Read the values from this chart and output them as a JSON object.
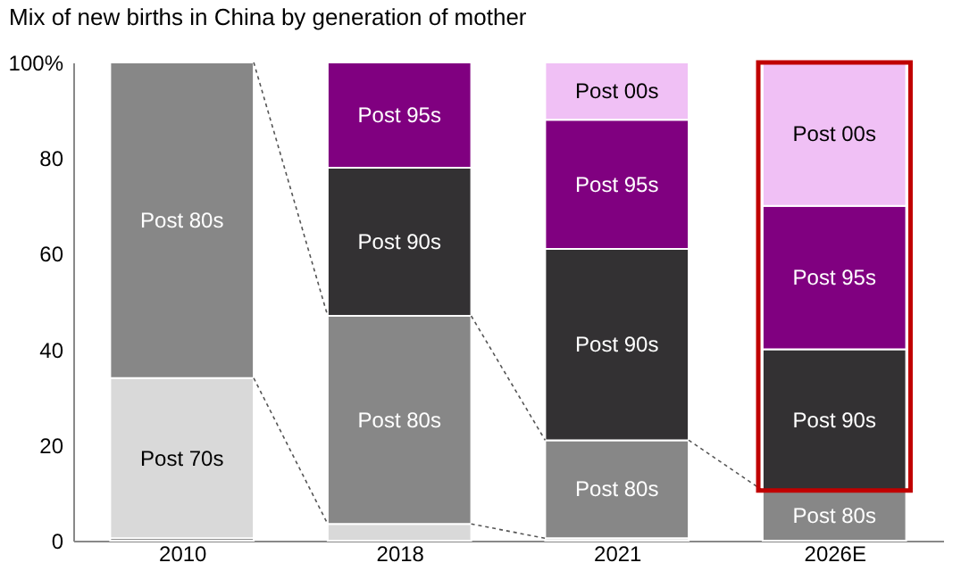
{
  "chart_data": {
    "type": "bar",
    "stacked": true,
    "title": "Mix of new births in China by generation of mother",
    "categories": [
      "2010",
      "2018",
      "2021",
      "2026E"
    ],
    "series": [
      {
        "color": "#3a3a3a",
        "values": [
          0.5,
          null,
          null,
          null
        ]
      },
      {
        "name": "Post 70s",
        "color": "#d9d9d9",
        "values": [
          33.5,
          3.5,
          0.5,
          null
        ]
      },
      {
        "name": "Post 80s",
        "color": "#878787",
        "values": [
          66,
          43.5,
          20.5,
          10.5
        ]
      },
      {
        "name": "Post 90s",
        "color": "#333133",
        "values": [
          null,
          31,
          40,
          29.5
        ]
      },
      {
        "name": "Post 95s",
        "color": "#800080",
        "values": [
          null,
          22,
          27,
          30
        ]
      },
      {
        "name": "Post 00s",
        "color": "#f0c0f5",
        "values": [
          null,
          null,
          12,
          30
        ]
      }
    ],
    "ylim": [
      0,
      100
    ],
    "yticks": [
      0,
      20,
      40,
      60,
      80,
      {
        "value": 100,
        "label": "100%"
      }
    ],
    "grid": false
  }
}
